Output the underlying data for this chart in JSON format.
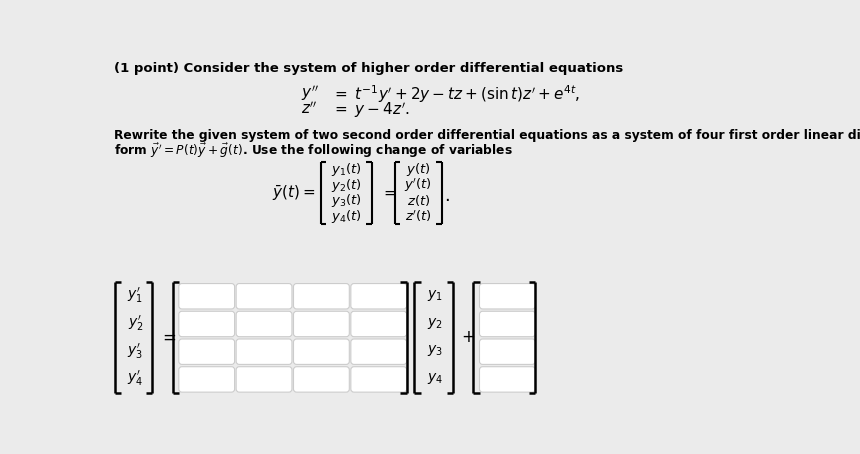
{
  "bg_color": "#ebebeb",
  "box_facecolor": "#ffffff",
  "box_edgecolor": "#cccccc",
  "text_color": "#000000",
  "bracket_color": "#000000",
  "title_text": "(1 point) Consider the system of higher order differential equations",
  "body_text1": "Rewrite the given system of two second order differential equations as a system of four first order linear differential equations of the",
  "body_text2": "form $\\vec{y}^{\\prime} = P(t)\\vec{y} + \\vec{g}(t)$. Use the following change of variables",
  "lv_labels": [
    "$y_1'$",
    "$y_2'$",
    "$y_3'$",
    "$y_4'$"
  ],
  "mv_labels": [
    "$y_1$",
    "$y_2$",
    "$y_3$",
    "$y_4$"
  ],
  "left_mat_entries": [
    "$y_1(t)$",
    "$y_2(t)$",
    "$y_3(t)$",
    "$y_4(t)$"
  ],
  "right_mat_entries": [
    "$y(t)$",
    "$y'(t)$",
    "$z(t)$",
    "$z'(t)$"
  ]
}
